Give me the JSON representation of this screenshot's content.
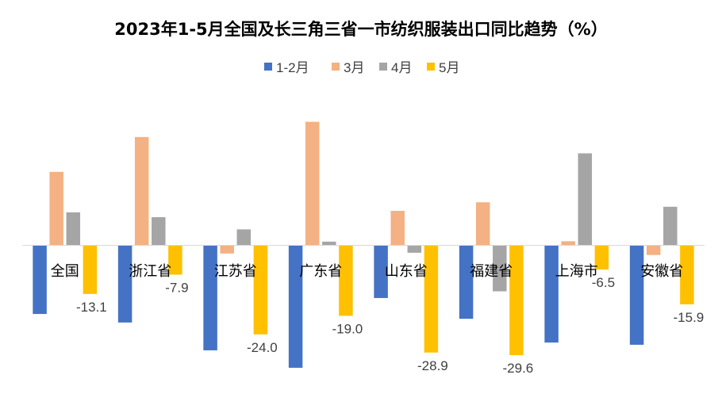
{
  "chart_data": {
    "type": "bar",
    "title": "2023年1-5月全国及长三角三省一市纺织服装出口同比趋势（%）",
    "categories": [
      "全国",
      "浙江省",
      "江苏省",
      "广东省",
      "山东省",
      "福建省",
      "上海市",
      "安徽省"
    ],
    "series": [
      {
        "name": "1-2月",
        "color": "#4472C4",
        "values": [
          -18.5,
          -20.8,
          -28.3,
          -33.0,
          -14.2,
          -19.8,
          -26.2,
          -26.8
        ]
      },
      {
        "name": "3月",
        "color": "#F4B183",
        "values": [
          19.8,
          29.2,
          -2.2,
          33.3,
          9.3,
          11.6,
          1.1,
          -2.6
        ]
      },
      {
        "name": "4月",
        "color": "#A5A5A5",
        "values": [
          8.9,
          7.6,
          4.3,
          1.0,
          -2.0,
          -12.4,
          24.8,
          10.4
        ]
      },
      {
        "name": "5月",
        "color": "#FFC000",
        "values": [
          -13.1,
          -7.9,
          -24.0,
          -19.0,
          -28.9,
          -29.6,
          -6.5,
          -15.9
        ]
      }
    ],
    "data_labels": {
      "series": "5月",
      "text": [
        "-13.1",
        "-7.9",
        "-24.0",
        "-19.0",
        "-28.9",
        "-29.6",
        "-6.5",
        "-15.9"
      ]
    },
    "legend_position": "top",
    "grid": false,
    "xlabel": "",
    "ylabel": "",
    "ylim": [
      -35,
      35
    ]
  }
}
